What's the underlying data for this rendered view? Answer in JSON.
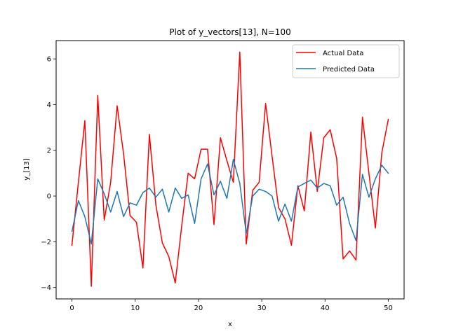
{
  "chart_data": {
    "type": "line",
    "title": "Plot of y_vectors[13], N=100",
    "xlabel": "x",
    "ylabel": "y_[13]",
    "xlim": [
      -2.5,
      52.5
    ],
    "ylim": [
      -4.5,
      6.8
    ],
    "xticks": [
      0,
      10,
      20,
      30,
      40,
      50
    ],
    "yticks": [
      -4,
      -2,
      0,
      2,
      4,
      6
    ],
    "grid": false,
    "legend_position": "top-right",
    "x": [
      0,
      1.02,
      2.04,
      3.06,
      4.08,
      5.1,
      6.12,
      7.14,
      8.16,
      9.18,
      10.2,
      11.22,
      12.24,
      13.27,
      14.29,
      15.31,
      16.33,
      17.35,
      18.37,
      19.39,
      20.41,
      21.43,
      22.45,
      23.47,
      24.49,
      25.51,
      26.53,
      27.55,
      28.57,
      29.59,
      30.61,
      31.63,
      32.65,
      33.67,
      34.69,
      35.71,
      36.73,
      37.76,
      38.78,
      39.8,
      40.82,
      41.84,
      42.86,
      43.88,
      44.9,
      45.92,
      46.94,
      47.96,
      48.98,
      50.0
    ],
    "series": [
      {
        "name": "Actual Data",
        "color": "#ff0000",
        "values": [
          -2.15,
          0.6,
          3.3,
          -3.95,
          4.4,
          -1.05,
          0.6,
          3.95,
          1.85,
          -0.85,
          -1.15,
          -3.15,
          2.7,
          -0.4,
          -2.05,
          -2.65,
          -3.8,
          -1.3,
          1.0,
          0.75,
          2.05,
          2.05,
          -1.25,
          2.55,
          1.55,
          0.6,
          6.3,
          -2.1,
          0.25,
          0.6,
          4.05,
          1.75,
          -0.5,
          -1.0,
          -2.15,
          0.45,
          -0.65,
          2.8,
          0.2,
          2.55,
          2.9,
          1.65,
          -2.75,
          -2.4,
          -2.8,
          3.45,
          1.0,
          -1.4,
          1.9,
          3.35
        ]
      },
      {
        "name": "Predicted Data",
        "color": "#1f77b4",
        "values": [
          -1.55,
          -0.2,
          -0.9,
          -2.1,
          0.75,
          0.1,
          -0.7,
          0.2,
          -0.9,
          -0.3,
          -0.4,
          0.15,
          0.35,
          -0.05,
          0.3,
          -0.7,
          0.35,
          -0.1,
          0.05,
          -1.2,
          0.75,
          1.4,
          0.05,
          0.65,
          -0.1,
          1.6,
          0.55,
          -1.65,
          0.0,
          0.3,
          0.2,
          0.0,
          -1.1,
          -0.35,
          -1.1,
          0.4,
          0.55,
          0.7,
          0.35,
          0.55,
          0.45,
          -0.4,
          -0.05,
          -1.2,
          -1.95,
          0.95,
          -0.05,
          0.75,
          1.35,
          1.0
        ]
      }
    ]
  }
}
